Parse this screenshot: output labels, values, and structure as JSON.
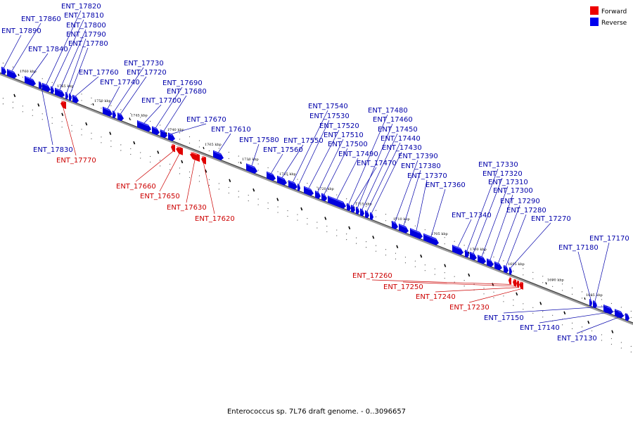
{
  "caption": "Enterococcus sp. 7L76 draft genome. - 0..3096657",
  "legend": [
    {
      "label": "Forward",
      "color": "#ee0000"
    },
    {
      "label": "Reverse",
      "color": "#0000ee"
    }
  ],
  "colors": {
    "forward_label": "#cc0000",
    "reverse_label": "#0000aa",
    "backbone": "#888888"
  },
  "ticks": [
    "1760 kbp",
    "1755 kbp",
    "1750 kbp",
    "1745 kbp",
    "1740 kbp",
    "1735 kbp",
    "1730 kbp",
    "1725 kbp",
    "1720 kbp",
    "1715 kbp",
    "1710 kbp",
    "1705 kbp",
    "1700 kbp",
    "1695 kbp",
    "1690 kbp",
    "1685 kbp"
  ],
  "genes": [
    {
      "id": "ENT_17890",
      "strand": "reverse"
    },
    {
      "id": "ENT_17860",
      "strand": "reverse"
    },
    {
      "id": "ENT_17840",
      "strand": "reverse"
    },
    {
      "id": "ENT_17830",
      "strand": "reverse"
    },
    {
      "id": "ENT_17820",
      "strand": "reverse"
    },
    {
      "id": "ENT_17810",
      "strand": "reverse"
    },
    {
      "id": "ENT_17800",
      "strand": "reverse"
    },
    {
      "id": "ENT_17790",
      "strand": "reverse"
    },
    {
      "id": "ENT_17780",
      "strand": "reverse"
    },
    {
      "id": "ENT_17770",
      "strand": "forward"
    },
    {
      "id": "ENT_17760",
      "strand": "reverse"
    },
    {
      "id": "ENT_17740",
      "strand": "reverse"
    },
    {
      "id": "ENT_17730",
      "strand": "reverse"
    },
    {
      "id": "ENT_17720",
      "strand": "reverse"
    },
    {
      "id": "ENT_17700",
      "strand": "reverse"
    },
    {
      "id": "ENT_17690",
      "strand": "reverse"
    },
    {
      "id": "ENT_17680",
      "strand": "reverse"
    },
    {
      "id": "ENT_17670",
      "strand": "reverse"
    },
    {
      "id": "ENT_17660",
      "strand": "forward"
    },
    {
      "id": "ENT_17650",
      "strand": "forward"
    },
    {
      "id": "ENT_17630",
      "strand": "forward"
    },
    {
      "id": "ENT_17620",
      "strand": "forward"
    },
    {
      "id": "ENT_17610",
      "strand": "reverse"
    },
    {
      "id": "ENT_17580",
      "strand": "reverse"
    },
    {
      "id": "ENT_17560",
      "strand": "reverse"
    },
    {
      "id": "ENT_17550",
      "strand": "reverse"
    },
    {
      "id": "ENT_17540",
      "strand": "reverse"
    },
    {
      "id": "ENT_17530",
      "strand": "reverse"
    },
    {
      "id": "ENT_17520",
      "strand": "reverse"
    },
    {
      "id": "ENT_17510",
      "strand": "reverse"
    },
    {
      "id": "ENT_17500",
      "strand": "reverse"
    },
    {
      "id": "ENT_17490",
      "strand": "reverse"
    },
    {
      "id": "ENT_17480",
      "strand": "reverse"
    },
    {
      "id": "ENT_17470",
      "strand": "reverse"
    },
    {
      "id": "ENT_17460",
      "strand": "reverse"
    },
    {
      "id": "ENT_17450",
      "strand": "reverse"
    },
    {
      "id": "ENT_17440",
      "strand": "reverse"
    },
    {
      "id": "ENT_17430",
      "strand": "reverse"
    },
    {
      "id": "ENT_17390",
      "strand": "reverse"
    },
    {
      "id": "ENT_17380",
      "strand": "reverse"
    },
    {
      "id": "ENT_17370",
      "strand": "reverse"
    },
    {
      "id": "ENT_17360",
      "strand": "reverse"
    },
    {
      "id": "ENT_17340",
      "strand": "reverse"
    },
    {
      "id": "ENT_17330",
      "strand": "reverse"
    },
    {
      "id": "ENT_17320",
      "strand": "reverse"
    },
    {
      "id": "ENT_17310",
      "strand": "reverse"
    },
    {
      "id": "ENT_17300",
      "strand": "reverse"
    },
    {
      "id": "ENT_17290",
      "strand": "reverse"
    },
    {
      "id": "ENT_17280",
      "strand": "reverse"
    },
    {
      "id": "ENT_17270",
      "strand": "reverse"
    },
    {
      "id": "ENT_17260",
      "strand": "forward"
    },
    {
      "id": "ENT_17250",
      "strand": "forward"
    },
    {
      "id": "ENT_17240",
      "strand": "forward"
    },
    {
      "id": "ENT_17230",
      "strand": "forward"
    },
    {
      "id": "ENT_17180",
      "strand": "reverse"
    },
    {
      "id": "ENT_17170",
      "strand": "reverse"
    },
    {
      "id": "ENT_17150",
      "strand": "reverse"
    },
    {
      "id": "ENT_17140",
      "strand": "reverse"
    },
    {
      "id": "ENT_17130",
      "strand": "reverse"
    }
  ]
}
